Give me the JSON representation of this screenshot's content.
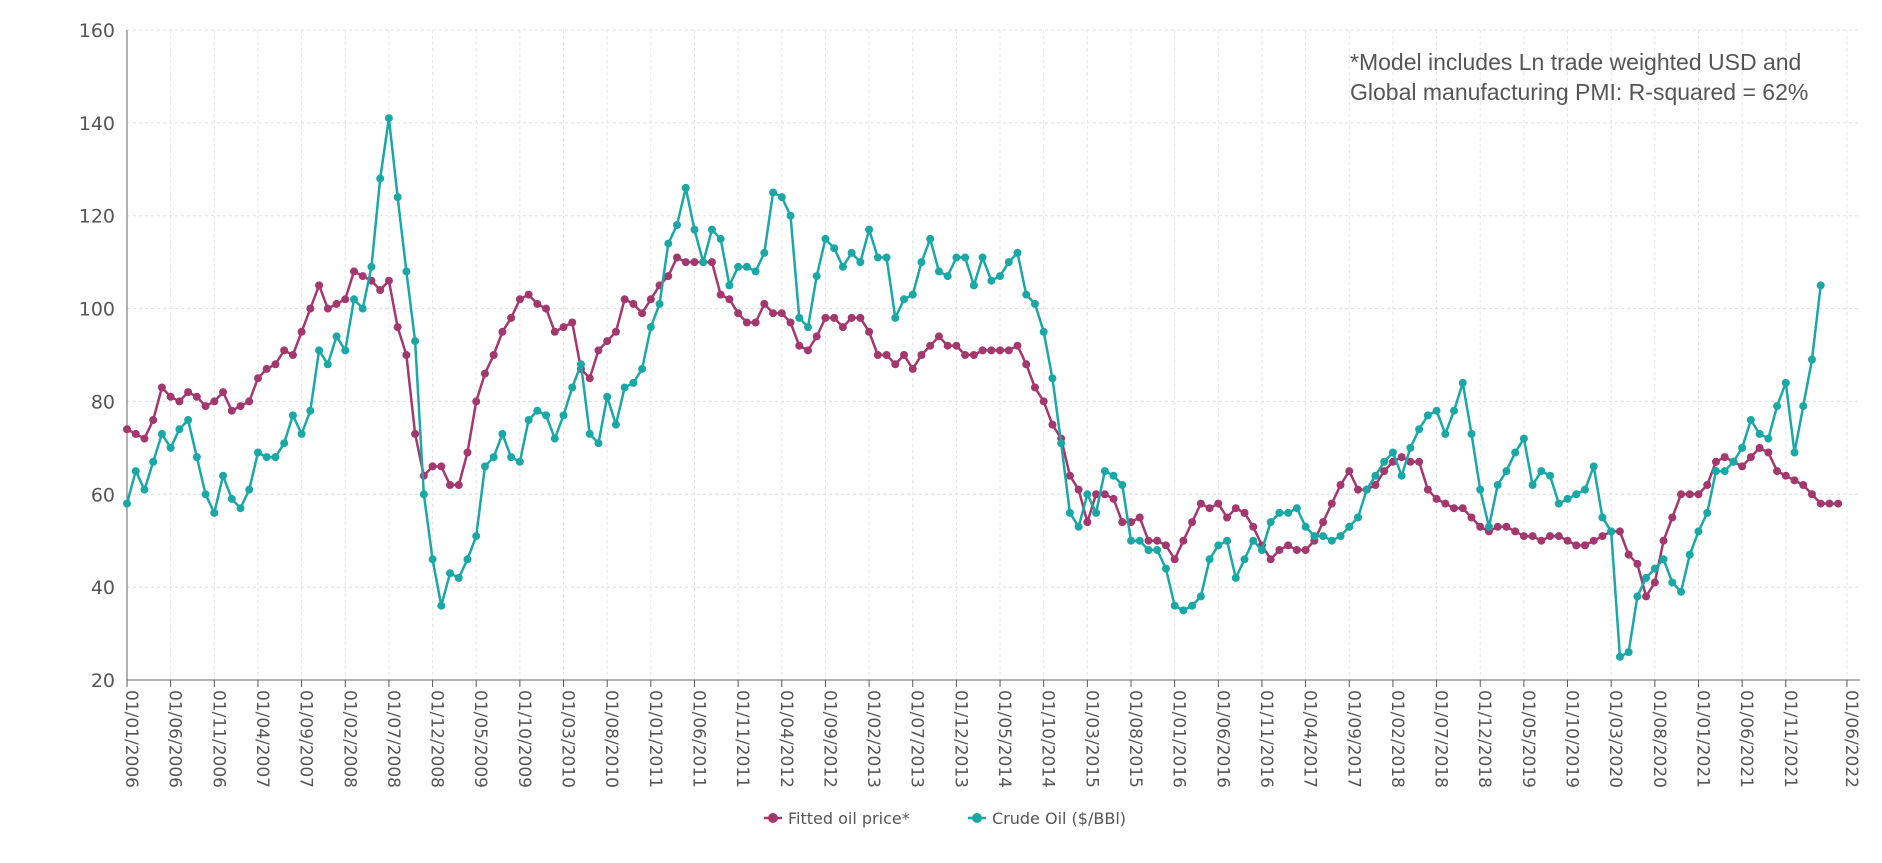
{
  "chart_data": {
    "type": "line",
    "title": "",
    "xlabel": "",
    "ylabel": "",
    "ylim": [
      20,
      160
    ],
    "yticks": [
      20,
      40,
      60,
      80,
      100,
      120,
      140,
      160
    ],
    "grid": true,
    "legend_position": "bottom-center",
    "annotation_lines": [
      "*Model includes Ln trade weighted USD and",
      "Global manufacturing PMI: R-squared = 62%"
    ],
    "x_tick_labels": [
      "01/01/2006",
      "01/06/2006",
      "01/11/2006",
      "01/04/2007",
      "01/09/2007",
      "01/02/2008",
      "01/07/2008",
      "01/12/2008",
      "01/05/2009",
      "01/10/2009",
      "01/03/2010",
      "01/08/2010",
      "01/01/2011",
      "01/06/2011",
      "01/11/2011",
      "01/04/2012",
      "01/09/2012",
      "01/02/2013",
      "01/07/2013",
      "01/12/2013",
      "01/05/2014",
      "01/10/2014",
      "01/03/2015",
      "01/08/2015",
      "01/01/2016",
      "01/06/2016",
      "01/11/2016",
      "01/04/2017",
      "01/09/2017",
      "01/02/2018",
      "01/07/2018",
      "01/12/2018",
      "01/05/2019",
      "01/10/2019",
      "01/03/2020",
      "01/08/2020",
      "01/01/2021",
      "01/06/2021",
      "01/11/2021",
      "01/06/2022"
    ],
    "x_start": "2006-01",
    "frequency": "monthly",
    "series": [
      {
        "name": "Fitted oil price*",
        "color": "#a3386e",
        "values": [
          74,
          73,
          72,
          76,
          83,
          81,
          80,
          82,
          81,
          79,
          80,
          82,
          78,
          79,
          80,
          85,
          87,
          88,
          91,
          90,
          95,
          100,
          105,
          100,
          101,
          102,
          108,
          107,
          106,
          104,
          106,
          96,
          90,
          73,
          64,
          66,
          66,
          62,
          62,
          69,
          80,
          86,
          90,
          95,
          98,
          102,
          103,
          101,
          100,
          95,
          96,
          97,
          87,
          85,
          91,
          93,
          95,
          102,
          101,
          99,
          102,
          105,
          107,
          111,
          110,
          110,
          110,
          110,
          103,
          102,
          99,
          97,
          97,
          101,
          99,
          99,
          97,
          92,
          91,
          94,
          98,
          98,
          96,
          98,
          98,
          95,
          90,
          90,
          88,
          90,
          87,
          90,
          92,
          94,
          92,
          92,
          90,
          90,
          91,
          91,
          91,
          91,
          92,
          88,
          83,
          80,
          75,
          72,
          64,
          61,
          54,
          60,
          60,
          59,
          54,
          54,
          55,
          50,
          50,
          49,
          46,
          50,
          54,
          58,
          57,
          58,
          55,
          57,
          56,
          53,
          49,
          46,
          48,
          49,
          48,
          48,
          50,
          54,
          58,
          62,
          65,
          61,
          61,
          62,
          65,
          67,
          68,
          67,
          67,
          61,
          59,
          58,
          57,
          57,
          55,
          53,
          52,
          53,
          53,
          52,
          51,
          51,
          50,
          51,
          51,
          50,
          49,
          49,
          50,
          51,
          52,
          52,
          47,
          45,
          38,
          41,
          50,
          55,
          60,
          60,
          60,
          62,
          67,
          68,
          67,
          66,
          68,
          70,
          69,
          65,
          64,
          63,
          62,
          60,
          58,
          58,
          58
        ]
      },
      {
        "name": "Crude Oil ($/BBl)",
        "color": "#1aa8a6",
        "values": [
          58,
          65,
          61,
          67,
          73,
          70,
          74,
          76,
          68,
          60,
          56,
          64,
          59,
          57,
          61,
          69,
          68,
          68,
          71,
          77,
          73,
          78,
          91,
          88,
          94,
          91,
          102,
          100,
          109,
          128,
          141,
          124,
          108,
          93,
          60,
          46,
          36,
          43,
          42,
          46,
          51,
          66,
          68,
          73,
          68,
          67,
          76,
          78,
          77,
          72,
          77,
          83,
          88,
          73,
          71,
          81,
          75,
          83,
          84,
          87,
          96,
          101,
          114,
          118,
          126,
          117,
          110,
          117,
          115,
          105,
          109,
          109,
          108,
          112,
          125,
          124,
          120,
          98,
          96,
          107,
          115,
          113,
          109,
          112,
          110,
          117,
          111,
          111,
          98,
          102,
          103,
          110,
          115,
          108,
          107,
          111,
          111,
          105,
          111,
          106,
          107,
          110,
          112,
          103,
          101,
          95,
          85,
          71,
          56,
          53,
          60,
          56,
          65,
          64,
          62,
          50,
          50,
          48,
          48,
          44,
          36,
          35,
          36,
          38,
          46,
          49,
          50,
          42,
          46,
          50,
          48,
          54,
          56,
          56,
          57,
          53,
          51,
          51,
          50,
          51,
          53,
          55,
          61,
          64,
          67,
          69,
          64,
          70,
          74,
          77,
          78,
          73,
          78,
          84,
          73,
          61,
          53,
          62,
          65,
          69,
          72,
          62,
          65,
          64,
          58,
          59,
          60,
          61,
          66,
          55,
          52,
          25,
          26,
          38,
          42,
          44,
          46,
          41,
          39,
          47,
          52,
          56,
          65,
          65,
          67,
          70,
          76,
          73,
          72,
          79,
          84,
          69,
          79,
          89,
          105
        ]
      }
    ]
  }
}
